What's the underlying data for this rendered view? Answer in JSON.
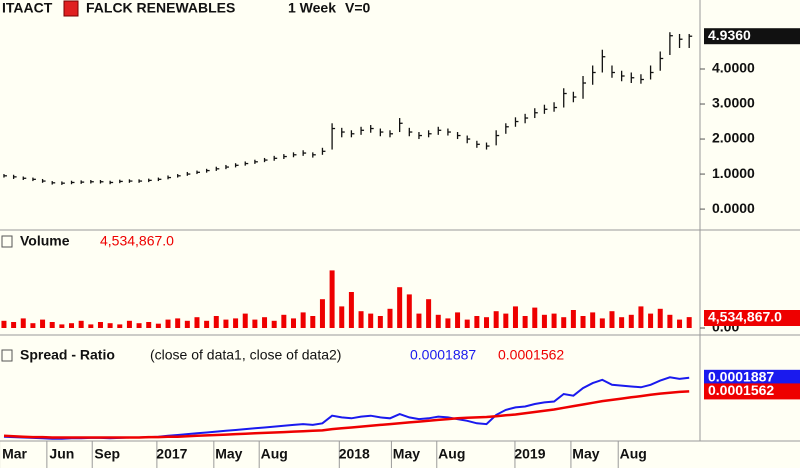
{
  "chart_data": [
    {
      "type": "ohlc",
      "symbol": "ITAACT",
      "title": "FALCK RENEWABLES",
      "interval": "1 Week",
      "volume_flag": "V=0",
      "color": "#111111",
      "last_label": "4.9360",
      "close": [
        0.95,
        0.92,
        0.88,
        0.85,
        0.8,
        0.75,
        0.74,
        0.76,
        0.77,
        0.78,
        0.78,
        0.76,
        0.79,
        0.8,
        0.8,
        0.82,
        0.85,
        0.9,
        0.95,
        1.0,
        1.05,
        1.1,
        1.15,
        1.2,
        1.25,
        1.3,
        1.35,
        1.4,
        1.45,
        1.5,
        1.55,
        1.6,
        1.55,
        1.65,
        2.3,
        2.2,
        2.15,
        2.25,
        2.3,
        2.2,
        2.15,
        2.45,
        2.2,
        2.1,
        2.15,
        2.25,
        2.2,
        2.1,
        2.0,
        1.85,
        1.8,
        2.1,
        2.35,
        2.5,
        2.6,
        2.75,
        2.85,
        2.9,
        3.3,
        3.2,
        3.6,
        3.9,
        4.35,
        3.9,
        3.8,
        3.75,
        3.7,
        3.9,
        4.3,
        4.95,
        4.85,
        4.936
      ],
      "high": [
        1.0,
        0.98,
        0.93,
        0.9,
        0.86,
        0.8,
        0.79,
        0.81,
        0.82,
        0.83,
        0.83,
        0.81,
        0.84,
        0.85,
        0.85,
        0.87,
        0.9,
        0.96,
        1.0,
        1.06,
        1.1,
        1.15,
        1.21,
        1.26,
        1.31,
        1.36,
        1.41,
        1.46,
        1.52,
        1.57,
        1.62,
        1.68,
        1.62,
        1.75,
        2.45,
        2.32,
        2.25,
        2.35,
        2.4,
        2.3,
        2.25,
        2.6,
        2.32,
        2.2,
        2.25,
        2.35,
        2.3,
        2.2,
        2.1,
        1.95,
        1.9,
        2.25,
        2.45,
        2.62,
        2.72,
        2.88,
        2.98,
        3.05,
        3.45,
        3.35,
        3.8,
        4.1,
        4.55,
        4.1,
        3.95,
        3.9,
        3.85,
        4.1,
        4.5,
        5.05,
        5.0,
        5.0
      ],
      "low": [
        0.9,
        0.86,
        0.83,
        0.8,
        0.75,
        0.7,
        0.69,
        0.71,
        0.72,
        0.73,
        0.73,
        0.71,
        0.74,
        0.75,
        0.75,
        0.77,
        0.8,
        0.85,
        0.9,
        0.95,
        1.0,
        1.04,
        1.09,
        1.14,
        1.19,
        1.24,
        1.29,
        1.34,
        1.38,
        1.43,
        1.48,
        1.52,
        1.47,
        1.55,
        1.7,
        2.05,
        2.05,
        2.12,
        2.18,
        2.08,
        2.05,
        2.2,
        2.08,
        2.0,
        2.05,
        2.12,
        2.1,
        2.0,
        1.88,
        1.75,
        1.7,
        1.82,
        2.15,
        2.35,
        2.45,
        2.6,
        2.72,
        2.78,
        2.9,
        3.05,
        3.15,
        3.55,
        3.9,
        3.75,
        3.65,
        3.6,
        3.58,
        3.7,
        3.95,
        4.4,
        4.6,
        4.6
      ],
      "ylim": [
        -0.54,
        5.97
      ],
      "yticks": [
        {
          "value": 0,
          "label": "0.0000"
        },
        {
          "value": 1,
          "label": "1.0000"
        },
        {
          "value": 2,
          "label": "2.0000"
        },
        {
          "value": 3,
          "label": "3.0000"
        },
        {
          "value": 4,
          "label": "4.0000"
        }
      ]
    },
    {
      "type": "bar",
      "title": "Volume",
      "color": "#ee0000",
      "last_label": "4,534,867.0",
      "values": [
        3000000,
        2500000,
        4000000,
        2000000,
        3500000,
        2500000,
        1500000,
        2000000,
        3000000,
        1500000,
        2500000,
        2000000,
        1500000,
        3000000,
        2000000,
        2500000,
        1800000,
        3500000,
        4000000,
        3000000,
        4500000,
        3000000,
        5000000,
        3500000,
        4000000,
        6000000,
        3500000,
        4500000,
        3000000,
        5500000,
        4000000,
        6500000,
        5000000,
        12000000,
        24000000,
        9000000,
        15000000,
        7000000,
        6000000,
        5000000,
        8000000,
        17000000,
        14000000,
        6000000,
        12000000,
        5500000,
        4000000,
        6500000,
        3500000,
        5000000,
        4500000,
        7000000,
        6000000,
        9000000,
        5000000,
        8500000,
        5500000,
        6000000,
        4500000,
        7500000,
        5000000,
        6500000,
        4000000,
        7000000,
        4500000,
        5500000,
        9000000,
        6000000,
        8000000,
        5500000,
        3500000,
        4534867
      ],
      "ylim": [
        0,
        40000000
      ],
      "yticks": [
        {
          "value": 0,
          "label": "0.00"
        }
      ]
    },
    {
      "type": "line",
      "title": "Spread - Ratio",
      "subtitle": "(close of data1,  close of data2)",
      "series": [
        {
          "color": "#1a1aee",
          "values": [
            4.8e-05,
            4.7e-05,
            4.6e-05,
            4.5e-05,
            4.4e-05,
            4.3e-05,
            4.3e-05,
            4.4e-05,
            4.4e-05,
            4.5e-05,
            4.5e-05,
            4.4e-05,
            4.5e-05,
            4.6e-05,
            4.6e-05,
            4.7e-05,
            4.8e-05,
            5e-05,
            5.2e-05,
            5.4e-05,
            5.6e-05,
            5.8e-05,
            6e-05,
            6.2e-05,
            6.4e-05,
            6.6e-05,
            6.8e-05,
            7e-05,
            7.2e-05,
            7.4e-05,
            7.6e-05,
            7.8e-05,
            7.6e-05,
            8e-05,
            9.8e-05,
            9.4e-05,
            9.2e-05,
            9.6e-05,
            9.8e-05,
            9.4e-05,
            9.2e-05,
            0.000102,
            9.4e-05,
            9e-05,
            9.2e-05,
            9.6e-05,
            9.4e-05,
            9e-05,
            8.6e-05,
            8e-05,
            7.8e-05,
            0.0001,
            0.000112,
            0.000118,
            0.00012,
            0.000126,
            0.00013,
            0.000132,
            0.00015,
            0.000146,
            0.000164,
            0.000176,
            0.000184,
            0.000172,
            0.00017,
            0.000168,
            0.000166,
            0.000172,
            0.000182,
            0.00019,
            0.000186,
            0.0001887
          ]
        },
        {
          "color": "#ee0000",
          "values": [
            5e-05,
            4.9e-05,
            4.8e-05,
            4.7e-05,
            4.7e-05,
            4.6e-05,
            4.6e-05,
            4.6e-05,
            4.6e-05,
            4.6e-05,
            4.6e-05,
            4.6e-05,
            4.6e-05,
            4.6e-05,
            4.6e-05,
            4.7e-05,
            4.7e-05,
            4.8e-05,
            4.8e-05,
            4.9e-05,
            5e-05,
            5.1e-05,
            5.2e-05,
            5.3e-05,
            5.4e-05,
            5.5e-05,
            5.6e-05,
            5.7e-05,
            5.8e-05,
            5.9e-05,
            6e-05,
            6.1e-05,
            6.2e-05,
            6.3e-05,
            6.6e-05,
            6.8e-05,
            7e-05,
            7.2e-05,
            7.4e-05,
            7.6e-05,
            7.8e-05,
            8e-05,
            8.2e-05,
            8.4e-05,
            8.6e-05,
            8.8e-05,
            9e-05,
            9.2e-05,
            9.3e-05,
            9.4e-05,
            9.5e-05,
            9.7e-05,
            9.9e-05,
            0.000101,
            0.000104,
            0.000107,
            0.00011,
            0.000113,
            0.000117,
            0.000121,
            0.000125,
            0.000129,
            0.000133,
            0.000136,
            0.000139,
            0.000142,
            0.000145,
            0.000148,
            0.000151,
            0.000153,
            0.000155,
            0.0001562
          ]
        }
      ],
      "ylim": [
        4e-05,
        0.00026
      ],
      "xlim": [
        -0.41,
        72.12
      ],
      "xticks": [
        {
          "value": 1.1,
          "label": "Mar"
        },
        {
          "value": 6.0,
          "label": "Jun"
        },
        {
          "value": 10.7,
          "label": "Sep"
        },
        {
          "value": 17.4,
          "label": "2017"
        },
        {
          "value": 23.3,
          "label": "May"
        },
        {
          "value": 28.0,
          "label": "Aug"
        },
        {
          "value": 36.3,
          "label": "2018"
        },
        {
          "value": 41.7,
          "label": "May"
        },
        {
          "value": 46.4,
          "label": "Aug"
        },
        {
          "value": 54.5,
          "label": "2019"
        },
        {
          "value": 60.3,
          "label": "May"
        },
        {
          "value": 65.2,
          "label": "Aug"
        }
      ]
    }
  ]
}
